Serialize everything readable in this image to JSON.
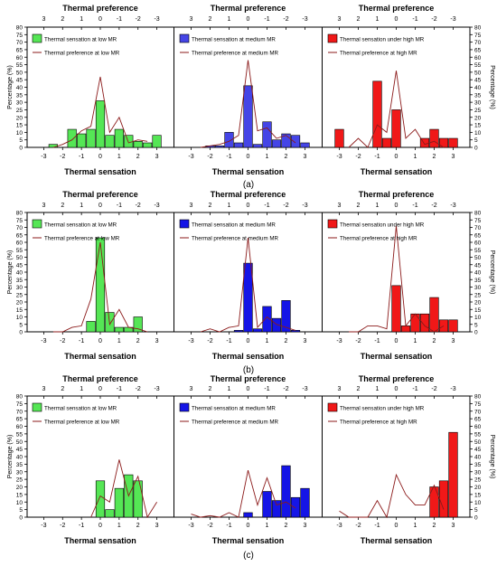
{
  "chart_data": [
    {
      "type": "bar",
      "figure_label": "(a)",
      "top_axis_title": "Thermal preference",
      "xlabel": "Thermal sensation",
      "ylabel": "Percentage (%)",
      "ylim": [
        0,
        80
      ],
      "y_ticks": [
        0,
        5,
        10,
        15,
        20,
        25,
        30,
        35,
        40,
        45,
        50,
        55,
        60,
        65,
        70,
        75,
        80
      ],
      "x_ticks": [
        "-3",
        "-2",
        "-1",
        "0",
        "1",
        "2",
        "3"
      ],
      "top_ticks": [
        "3",
        "2",
        "1",
        "0",
        "-1",
        "-2",
        "-3"
      ],
      "panels": [
        {
          "legend_bar": "Thermal sensation at low MR",
          "legend_line": "Thermal preference at low MR",
          "bar_color": "#55e655",
          "bars": [
            [
              -2.5,
              2
            ],
            [
              -1.5,
              12
            ],
            [
              -1.0,
              9
            ],
            [
              -0.5,
              12
            ],
            [
              0.0,
              31
            ],
            [
              0.5,
              8
            ],
            [
              1.0,
              12
            ],
            [
              1.5,
              8
            ],
            [
              2.0,
              4
            ],
            [
              2.5,
              3
            ],
            [
              3.0,
              8
            ]
          ],
          "line": [
            [
              -2.5,
              0
            ],
            [
              -2.0,
              2
            ],
            [
              -1.5,
              5
            ],
            [
              -1.0,
              11
            ],
            [
              -0.5,
              14
            ],
            [
              0.0,
              47
            ],
            [
              0.5,
              10
            ],
            [
              1.0,
              20
            ],
            [
              1.5,
              3
            ],
            [
              2.0,
              5
            ],
            [
              2.5,
              4
            ]
          ]
        },
        {
          "legend_bar": "Thermal sensation at medium MR",
          "legend_line": "Thermal preference at medium MR",
          "bar_color": "#4545e6",
          "bars": [
            [
              -2.0,
              1
            ],
            [
              -1.5,
              1
            ],
            [
              -1.0,
              10
            ],
            [
              -0.5,
              3
            ],
            [
              0.0,
              41
            ],
            [
              0.5,
              2
            ],
            [
              1.0,
              17
            ],
            [
              1.5,
              5
            ],
            [
              2.0,
              9
            ],
            [
              2.5,
              8
            ],
            [
              3.0,
              3
            ]
          ],
          "line": [
            [
              -2.5,
              0
            ],
            [
              -2.0,
              1
            ],
            [
              -1.5,
              2
            ],
            [
              -1.0,
              4
            ],
            [
              -0.5,
              8
            ],
            [
              0.0,
              58
            ],
            [
              0.5,
              11
            ],
            [
              1.0,
              13
            ],
            [
              1.5,
              6
            ],
            [
              2.0,
              8
            ],
            [
              2.5,
              3
            ]
          ]
        },
        {
          "legend_bar": "Thermal sensation under high MR",
          "legend_line": "Thermal preference at high MR",
          "bar_color": "#f01818",
          "bars": [
            [
              -3.0,
              12
            ],
            [
              -1.0,
              44
            ],
            [
              -0.5,
              6
            ],
            [
              0.0,
              25
            ],
            [
              1.5,
              6
            ],
            [
              2.0,
              12
            ],
            [
              2.5,
              6
            ],
            [
              3.0,
              6
            ]
          ],
          "line": [
            [
              -2.5,
              0
            ],
            [
              -2.0,
              6
            ],
            [
              -1.5,
              0
            ],
            [
              -1.0,
              15
            ],
            [
              -0.5,
              10
            ],
            [
              0.0,
              51
            ],
            [
              0.5,
              6
            ],
            [
              1.0,
              12
            ],
            [
              1.5,
              2
            ],
            [
              2.0,
              4
            ],
            [
              2.5,
              0
            ]
          ]
        }
      ]
    },
    {
      "type": "bar",
      "figure_label": "(b)",
      "top_axis_title": "Thermal preference",
      "xlabel": "Thermal sensation",
      "ylabel": "Percentage (%)",
      "ylim": [
        0,
        80
      ],
      "y_ticks": [
        0,
        5,
        10,
        15,
        20,
        25,
        30,
        35,
        40,
        45,
        50,
        55,
        60,
        65,
        70,
        75,
        80
      ],
      "x_ticks": [
        "-3",
        "-2",
        "-1",
        "0",
        "1",
        "2",
        "3"
      ],
      "top_ticks": [
        "3",
        "2",
        "1",
        "0",
        "-1",
        "-2",
        "-3"
      ],
      "panels": [
        {
          "legend_bar": "Thermal sensation at low MR",
          "legend_line": "Thermal preference at low MR",
          "bar_color": "#55e655",
          "bars": [
            [
              -0.5,
              7
            ],
            [
              0.0,
              63
            ],
            [
              0.5,
              13
            ],
            [
              1.0,
              3
            ],
            [
              1.5,
              3
            ],
            [
              2.0,
              10
            ]
          ],
          "line": [
            [
              -2.5,
              0
            ],
            [
              -2.0,
              0
            ],
            [
              -1.5,
              3
            ],
            [
              -1.0,
              4
            ],
            [
              -0.5,
              22
            ],
            [
              0.0,
              60
            ],
            [
              0.5,
              5
            ],
            [
              1.0,
              15
            ],
            [
              1.5,
              3
            ],
            [
              2.0,
              2
            ],
            [
              2.5,
              0
            ]
          ]
        },
        {
          "legend_bar": "Thermal sensation at medium MR",
          "legend_line": "Thermal preference at medium MR",
          "bar_color": "#1515e6",
          "bars": [
            [
              -0.5,
              1
            ],
            [
              0.0,
              46
            ],
            [
              0.5,
              2
            ],
            [
              1.0,
              17
            ],
            [
              1.5,
              9
            ],
            [
              2.0,
              21
            ],
            [
              2.5,
              1
            ]
          ],
          "line": [
            [
              -2.5,
              0
            ],
            [
              -2.0,
              2
            ],
            [
              -1.5,
              0
            ],
            [
              -1.0,
              3
            ],
            [
              -0.5,
              4
            ],
            [
              0.0,
              63
            ],
            [
              0.5,
              3
            ],
            [
              1.0,
              10
            ],
            [
              1.5,
              5
            ],
            [
              2.0,
              3
            ],
            [
              2.5,
              1
            ]
          ]
        },
        {
          "legend_bar": "Thermal sensation under high MR",
          "legend_line": "Thermal preference at high MR",
          "bar_color": "#f01818",
          "bars": [
            [
              0.0,
              31
            ],
            [
              0.5,
              4
            ],
            [
              1.0,
              12
            ],
            [
              1.5,
              12
            ],
            [
              2.0,
              23
            ],
            [
              2.5,
              8
            ],
            [
              3.0,
              8
            ]
          ],
          "line": [
            [
              -2.5,
              0
            ],
            [
              -2.0,
              0
            ],
            [
              -1.5,
              4
            ],
            [
              -1.0,
              4
            ],
            [
              -0.5,
              2
            ],
            [
              0.0,
              71
            ],
            [
              0.5,
              4
            ],
            [
              1.0,
              12
            ],
            [
              1.5,
              4
            ],
            [
              2.0,
              0
            ],
            [
              2.5,
              4
            ]
          ]
        }
      ]
    },
    {
      "type": "bar",
      "figure_label": "(c)",
      "top_axis_title": "Thermal preference",
      "xlabel": "Thermal sensation",
      "ylabel": "Percentage (%)",
      "ylim": [
        0,
        80
      ],
      "y_ticks": [
        0,
        5,
        10,
        15,
        20,
        25,
        30,
        35,
        40,
        45,
        50,
        55,
        60,
        65,
        70,
        75,
        80
      ],
      "x_ticks": [
        "-3",
        "-2",
        "-1",
        "0",
        "1",
        "2",
        "3"
      ],
      "top_ticks": [
        "3",
        "2",
        "1",
        "0",
        "-1",
        "-2",
        "-3"
      ],
      "panels": [
        {
          "legend_bar": "Thermal sensation at low MR",
          "legend_line": "Thermal preference at low MR",
          "bar_color": "#55e655",
          "bars": [
            [
              0.0,
              24
            ],
            [
              0.5,
              5
            ],
            [
              1.0,
              19
            ],
            [
              1.5,
              28
            ],
            [
              2.0,
              24
            ]
          ],
          "line": [
            [
              -0.5,
              0
            ],
            [
              0.0,
              14
            ],
            [
              0.5,
              10
            ],
            [
              1.0,
              38
            ],
            [
              1.5,
              14
            ],
            [
              2.0,
              27
            ],
            [
              2.5,
              0
            ],
            [
              3.0,
              10
            ]
          ]
        },
        {
          "legend_bar": "Thermal sensation at medium MR",
          "legend_line": "Thermal preference at medium MR",
          "bar_color": "#1515e6",
          "bars": [
            [
              0.0,
              3
            ],
            [
              1.0,
              17
            ],
            [
              1.5,
              11
            ],
            [
              2.0,
              34
            ],
            [
              2.5,
              13
            ],
            [
              3.0,
              19
            ]
          ],
          "line": [
            [
              -3.0,
              2
            ],
            [
              -2.5,
              0
            ],
            [
              -2.0,
              1
            ],
            [
              -1.5,
              0
            ],
            [
              -1.0,
              3
            ],
            [
              -0.5,
              0
            ],
            [
              0.0,
              31
            ],
            [
              0.5,
              8
            ],
            [
              1.0,
              26
            ],
            [
              1.5,
              8
            ],
            [
              2.0,
              10
            ],
            [
              2.5,
              6
            ]
          ]
        },
        {
          "legend_bar": "Thermal sensation under high MR",
          "legend_line": "Thermal preference at high MR",
          "bar_color": "#f01818",
          "bars": [
            [
              2.0,
              20
            ],
            [
              2.5,
              24
            ],
            [
              3.0,
              56
            ]
          ],
          "line": [
            [
              -3.0,
              4
            ],
            [
              -2.5,
              0
            ],
            [
              -2.0,
              0
            ],
            [
              -1.5,
              0
            ],
            [
              -1.0,
              11
            ],
            [
              -0.5,
              0
            ],
            [
              0.0,
              28
            ],
            [
              0.5,
              15
            ],
            [
              1.0,
              8
            ],
            [
              1.5,
              8
            ],
            [
              2.0,
              21
            ],
            [
              2.5,
              5
            ]
          ]
        }
      ]
    }
  ]
}
